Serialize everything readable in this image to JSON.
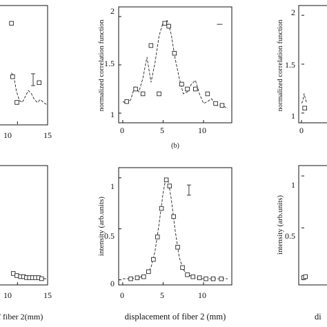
{
  "chart_data": [
    {
      "id": "top-left",
      "type": "line",
      "xlim": [
        0,
        15
      ],
      "ylim": [
        0.9,
        2.1
      ],
      "visible_x_ticks": [
        "10",
        "15"
      ],
      "xtick_values": [
        10,
        15
      ],
      "curve": {
        "x": [
          9.0,
          9.4,
          9.8,
          10.3,
          10.8,
          11.3,
          11.8,
          12.3,
          12.8,
          13.3,
          13.8,
          14.3,
          14.8
        ],
        "y": [
          1.42,
          1.38,
          1.24,
          1.14,
          1.12,
          1.18,
          1.24,
          1.21,
          1.15,
          1.12,
          1.15,
          1.12,
          1.1
        ]
      },
      "markers": {
        "x": [
          9.2,
          9.9,
          13.6
        ],
        "y": [
          1.38,
          1.12,
          1.32
        ]
      },
      "top_marker": {
        "x": 9.0,
        "y": 1.92
      },
      "error_bar": {
        "x": 12.6,
        "y": 1.35,
        "err": 0.06
      }
    },
    {
      "id": "b",
      "type": "line",
      "panel_label": "(b)",
      "ylabel": "normalized correlation function",
      "xlim": [
        -0.5,
        13.5
      ],
      "ylim": [
        0.9,
        2.1
      ],
      "xticks": [
        "0",
        "5",
        "10"
      ],
      "xtick_values": [
        0,
        5,
        10
      ],
      "yticks": [
        "1",
        "1.5",
        "2"
      ],
      "ytick_values": [
        1,
        1.5,
        2
      ],
      "curve": {
        "x": [
          0,
          0.5,
          1,
          1.5,
          2,
          2.5,
          3,
          3.5,
          4,
          4.5,
          5,
          5.5,
          6,
          6.5,
          7,
          7.5,
          8,
          8.5,
          9,
          9.5,
          10,
          10.5,
          11,
          11.5,
          12,
          12.5,
          13
        ],
        "y": [
          1.12,
          1.1,
          1.14,
          1.28,
          1.22,
          1.36,
          1.58,
          1.32,
          1.52,
          1.8,
          1.94,
          1.96,
          1.82,
          1.56,
          1.36,
          1.2,
          1.22,
          1.3,
          1.34,
          1.2,
          1.1,
          1.12,
          1.15,
          1.08,
          1.08,
          1.07,
          1.05
        ]
      },
      "markers": {
        "x": [
          0.5,
          1.6,
          2.5,
          3.5,
          4.5,
          5.2,
          5.7,
          6.4,
          7.3,
          8.0,
          9.0,
          10.5,
          11.5,
          12.3
        ],
        "y": [
          1.12,
          1.25,
          1.2,
          1.7,
          1.2,
          1.93,
          1.9,
          1.62,
          1.3,
          1.25,
          1.25,
          1.2,
          1.1,
          1.08
        ]
      },
      "error_bar": {
        "x": 12.0,
        "y": 1.92,
        "err": 0.0
      }
    },
    {
      "id": "top-right",
      "type": "line",
      "ylabel": "normalized correlation function",
      "xlim": [
        0,
        15
      ],
      "ylim": [
        0.9,
        2.1
      ],
      "xticks": [
        "0"
      ],
      "xtick_values": [
        0
      ],
      "yticks": [
        "1",
        "1.5",
        "2"
      ],
      "ytick_values": [
        1,
        1.5,
        2
      ],
      "curve": {
        "x": [
          0,
          0.5,
          1,
          1.5,
          2
        ],
        "y": [
          1.1,
          1.12,
          1.2,
          1.14,
          1.1
        ]
      },
      "markers": {
        "x": [
          1.2
        ],
        "y": [
          1.05
        ]
      }
    },
    {
      "id": "bottom-left",
      "type": "line",
      "xlim": [
        0,
        15
      ],
      "ylim": [
        -0.05,
        1.1
      ],
      "visible_x_ticks": [
        "10",
        "15"
      ],
      "xtick_values": [
        10,
        15
      ],
      "xlabel_fragment": "f fiber  2(mm)",
      "curve": {
        "x": [
          9.0,
          9.5,
          10.0,
          10.5,
          11,
          12,
          13,
          14,
          14.8
        ],
        "y": [
          0.06,
          0.04,
          0.03,
          0.02,
          0.02,
          0.01,
          0.01,
          0.01,
          0.01
        ]
      },
      "markers": {
        "x": [
          9.3,
          9.9,
          10.5,
          11.0,
          11.5,
          12.0,
          12.5,
          13.0,
          13.5,
          14.0
        ],
        "y": [
          0.06,
          0.04,
          0.03,
          0.03,
          0.02,
          0.02,
          0.02,
          0.02,
          0.02,
          0.01
        ]
      }
    },
    {
      "id": "bottom-center",
      "type": "line",
      "ylabel": "intensity (arb.units)",
      "xlabel": "displacement of fiber  2 (mm)",
      "xlim": [
        -0.5,
        13.5
      ],
      "ylim": [
        -0.05,
        1.1
      ],
      "xticks": [
        "0",
        "5",
        "10"
      ],
      "xtick_values": [
        0,
        5,
        10
      ],
      "yticks": [
        "0",
        "0.5",
        "1"
      ],
      "ytick_values": [
        0,
        0.5,
        1
      ],
      "curve": {
        "x": [
          0,
          1,
          2,
          3,
          3.5,
          4,
          4.5,
          5,
          5.3,
          5.6,
          6,
          6.5,
          7,
          7.5,
          8,
          9,
          10,
          11,
          12,
          13
        ],
        "y": [
          0.01,
          0.01,
          0.02,
          0.06,
          0.12,
          0.28,
          0.55,
          0.85,
          0.98,
          0.98,
          0.8,
          0.48,
          0.22,
          0.1,
          0.05,
          0.02,
          0.01,
          0.01,
          0.01,
          0.01
        ]
      },
      "markers": {
        "x": [
          1.0,
          1.8,
          2.6,
          3.2,
          3.8,
          4.3,
          4.8,
          5.4,
          5.8,
          6.3,
          6.8,
          7.4,
          8.0,
          8.7,
          9.5,
          10.3,
          11.2,
          12.2
        ],
        "y": [
          0.01,
          0.02,
          0.03,
          0.08,
          0.2,
          0.42,
          0.7,
          0.98,
          0.92,
          0.62,
          0.32,
          0.12,
          0.05,
          0.03,
          0.02,
          0.01,
          0.01,
          0.01
        ]
      },
      "error_bar": {
        "x": 8.2,
        "y": 0.88,
        "err": 0.05
      }
    },
    {
      "id": "bottom-right",
      "type": "line",
      "ylabel": "intensity (arb.units)",
      "xlabel_fragment": "di",
      "xlim": [
        0,
        15
      ],
      "ylim": [
        -0.05,
        1.1
      ],
      "yticks": [
        "0",
        "0.5",
        "1"
      ],
      "ytick_values": [
        0,
        0.5,
        1
      ],
      "curve": {
        "x": [
          0,
          0.5,
          1,
          1.5,
          2
        ],
        "y": [
          0.01,
          0.02,
          0.02,
          0.02,
          0.02
        ]
      },
      "markers": {
        "x": [
          0.8,
          1.5
        ],
        "y": [
          0.02,
          0.03
        ]
      }
    }
  ]
}
